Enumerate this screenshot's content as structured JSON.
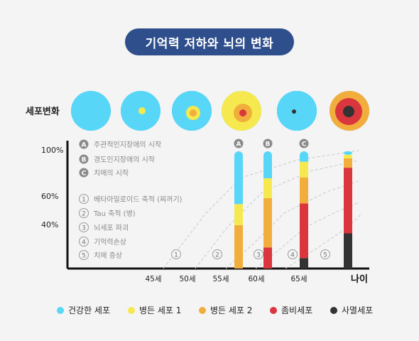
{
  "title": "기억력 저하와 뇌의 변화",
  "cells_label": "세포변화",
  "colors": {
    "healthy": "#58d6f7",
    "sick1": "#f6e94f",
    "sick2": "#f2ae3c",
    "zombie": "#d9363d",
    "dead": "#333333",
    "axis": "#111111",
    "grid": "#c8c8c8",
    "note_text": "#8a8a8a"
  },
  "notes_letters": [
    {
      "marker": "A",
      "text": "주관적인지장애의 시작"
    },
    {
      "marker": "B",
      "text": "경도인지장애의 시작"
    },
    {
      "marker": "C",
      "text": "치매의 시작"
    }
  ],
  "notes_numbers": [
    {
      "marker": "1",
      "text": "베타아밀로이드 축적 (찌꺼기)"
    },
    {
      "marker": "2",
      "text": "Tau 축적 (병)"
    },
    {
      "marker": "3",
      "text": "뇌세포 파괴"
    },
    {
      "marker": "4",
      "text": "기억력손상"
    },
    {
      "marker": "5",
      "text": "치매 증상"
    }
  ],
  "chart_data": {
    "type": "bar",
    "xlabel": "나이",
    "x_ticks": [
      "45세",
      "50세",
      "55세",
      "60세",
      "65세"
    ],
    "y_ticks": [
      "100%",
      "60%",
      "40%"
    ],
    "stage_markers": [
      "1",
      "2",
      "3",
      "4",
      "5"
    ],
    "bars": [
      {
        "marker": "A",
        "segments": [
          {
            "name": "병든 세포 2",
            "value": 37
          },
          {
            "name": "병든 세포 1",
            "value": 18
          },
          {
            "name": "건강한 세포",
            "value": 45
          }
        ]
      },
      {
        "marker": "B",
        "segments": [
          {
            "name": "좀비세포",
            "value": 18
          },
          {
            "name": "병든 세포 2",
            "value": 42
          },
          {
            "name": "병든 세포 1",
            "value": 17
          },
          {
            "name": "건강한 세포",
            "value": 23
          }
        ]
      },
      {
        "marker": "C",
        "segments": [
          {
            "name": "사멸세포",
            "value": 8
          },
          {
            "name": "좀비세포",
            "value": 42
          },
          {
            "name": "병든 세포 2",
            "value": 20
          },
          {
            "name": "병든 세포 1",
            "value": 12
          },
          {
            "name": "건강한 세포",
            "value": 8
          }
        ]
      },
      {
        "marker": "",
        "segments": [
          {
            "name": "사멸세포",
            "value": 30
          },
          {
            "name": "좀비세포",
            "value": 56
          },
          {
            "name": "병든 세포 2",
            "value": 8
          },
          {
            "name": "병든 세포 1",
            "value": 3
          },
          {
            "name": "건강한 세포",
            "value": 3
          }
        ]
      }
    ],
    "cell_stages": [
      {
        "rings": [
          "healthy"
        ]
      },
      {
        "rings": [
          "healthy",
          "sick1"
        ]
      },
      {
        "rings": [
          "healthy",
          "sick1",
          "sick2"
        ]
      },
      {
        "rings": [
          "sick1",
          "sick2",
          "zombie"
        ]
      },
      {
        "rings": [
          "sick1",
          "sick2",
          "zombie",
          "dead"
        ]
      },
      {
        "rings": [
          "sick2",
          "zombie",
          "dead"
        ]
      }
    ],
    "legend": [
      {
        "name": "건강한 세포",
        "key": "healthy"
      },
      {
        "name": "병든 세포 1",
        "key": "sick1"
      },
      {
        "name": "병든 세포 2",
        "key": "sick2"
      },
      {
        "name": "좀비세포",
        "key": "zombie"
      },
      {
        "name": "사멸세포",
        "key": "dead"
      }
    ]
  }
}
